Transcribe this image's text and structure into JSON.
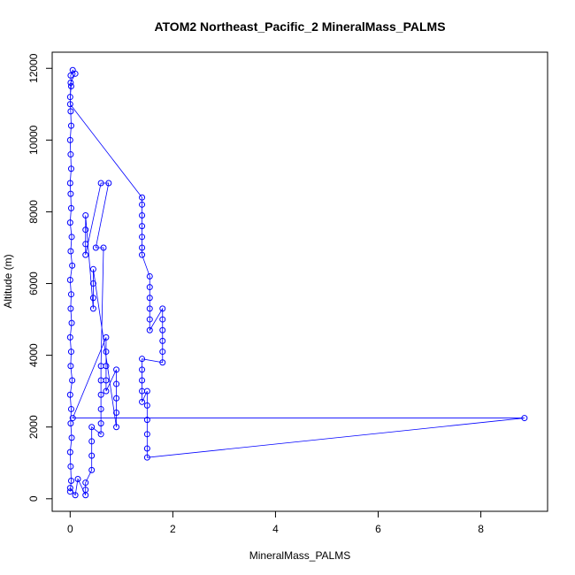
{
  "chart_data": {
    "type": "scatter",
    "title": "ATOM2 Northeast_Pacific_2 MineralMass_PALMS",
    "xlabel": "MineralMass_PALMS",
    "ylabel": "Altitude (m)",
    "xlim": [
      -0.35,
      9.3
    ],
    "ylim": [
      -350,
      12450
    ],
    "xticks": [
      0,
      2,
      4,
      6,
      8
    ],
    "yticks": [
      0,
      2000,
      4000,
      6000,
      8000,
      10000,
      12000
    ],
    "marker": "open-circle",
    "connect_points": true,
    "colors": {
      "series": "#0000ff",
      "axis": "#000000",
      "background": "#ffffff"
    },
    "series": [
      {
        "points": [
          [
            0.0,
            200
          ],
          [
            0.02,
            500
          ],
          [
            0.01,
            900
          ],
          [
            0.0,
            1300
          ],
          [
            0.03,
            1700
          ],
          [
            0.01,
            2100
          ],
          [
            0.02,
            2500
          ],
          [
            0.0,
            2900
          ],
          [
            0.04,
            3300
          ],
          [
            0.01,
            3700
          ],
          [
            0.02,
            4100
          ],
          [
            0.0,
            4500
          ],
          [
            0.03,
            4900
          ],
          [
            0.01,
            5300
          ],
          [
            0.02,
            5700
          ],
          [
            0.0,
            6100
          ],
          [
            0.04,
            6500
          ],
          [
            0.01,
            6900
          ],
          [
            0.03,
            7300
          ],
          [
            0.0,
            7700
          ],
          [
            0.02,
            8100
          ],
          [
            0.01,
            8500
          ],
          [
            0.0,
            8800
          ],
          [
            0.02,
            9200
          ],
          [
            0.01,
            9600
          ],
          [
            0.0,
            10000
          ],
          [
            0.02,
            10400
          ],
          [
            0.01,
            10800
          ],
          [
            0.0,
            11200
          ],
          [
            0.02,
            11500
          ],
          [
            0.01,
            11800
          ],
          [
            0.05,
            11950
          ],
          [
            0.1,
            11850
          ],
          [
            0.01,
            11600
          ],
          [
            0.0,
            11000
          ],
          [
            1.4,
            8400
          ],
          [
            1.4,
            8200
          ],
          [
            1.4,
            7900
          ],
          [
            1.4,
            7600
          ],
          [
            1.4,
            7300
          ],
          [
            1.4,
            7000
          ],
          [
            1.4,
            6800
          ],
          [
            1.55,
            6200
          ],
          [
            1.55,
            5900
          ],
          [
            1.55,
            5600
          ],
          [
            1.55,
            5300
          ],
          [
            1.55,
            5000
          ],
          [
            1.55,
            4700
          ],
          [
            1.8,
            5300
          ],
          [
            1.8,
            5000
          ],
          [
            1.8,
            4700
          ],
          [
            1.8,
            4400
          ],
          [
            1.8,
            4100
          ],
          [
            1.8,
            3800
          ],
          [
            1.4,
            3900
          ],
          [
            1.4,
            3600
          ],
          [
            1.4,
            3300
          ],
          [
            1.4,
            3000
          ],
          [
            1.4,
            2700
          ],
          [
            1.5,
            3000
          ],
          [
            1.5,
            2600
          ],
          [
            1.5,
            2200
          ],
          [
            1.5,
            1800
          ],
          [
            1.5,
            1400
          ],
          [
            1.5,
            1150
          ],
          [
            8.85,
            2250
          ],
          [
            0.05,
            2250
          ],
          [
            0.7,
            4500
          ],
          [
            0.7,
            4100
          ],
          [
            0.7,
            3700
          ],
          [
            0.7,
            3300
          ],
          [
            0.7,
            3000
          ],
          [
            0.9,
            3600
          ],
          [
            0.9,
            3200
          ],
          [
            0.9,
            2800
          ],
          [
            0.9,
            2400
          ],
          [
            0.9,
            2000
          ],
          [
            0.45,
            6400
          ],
          [
            0.45,
            6000
          ],
          [
            0.45,
            5600
          ],
          [
            0.45,
            5300
          ],
          [
            0.3,
            7900
          ],
          [
            0.3,
            7500
          ],
          [
            0.3,
            7100
          ],
          [
            0.3,
            6800
          ],
          [
            0.6,
            8800
          ],
          [
            0.75,
            8800
          ],
          [
            0.5,
            7000
          ],
          [
            0.65,
            7000
          ],
          [
            0.6,
            3700
          ],
          [
            0.6,
            3300
          ],
          [
            0.6,
            2900
          ],
          [
            0.6,
            2500
          ],
          [
            0.6,
            2100
          ],
          [
            0.6,
            1800
          ],
          [
            0.42,
            2000
          ],
          [
            0.42,
            1600
          ],
          [
            0.42,
            1200
          ],
          [
            0.42,
            800
          ],
          [
            0.3,
            450
          ],
          [
            0.3,
            250
          ],
          [
            0.3,
            100
          ],
          [
            0.15,
            550
          ],
          [
            0.1,
            100
          ],
          [
            0.0,
            300
          ]
        ]
      }
    ]
  }
}
